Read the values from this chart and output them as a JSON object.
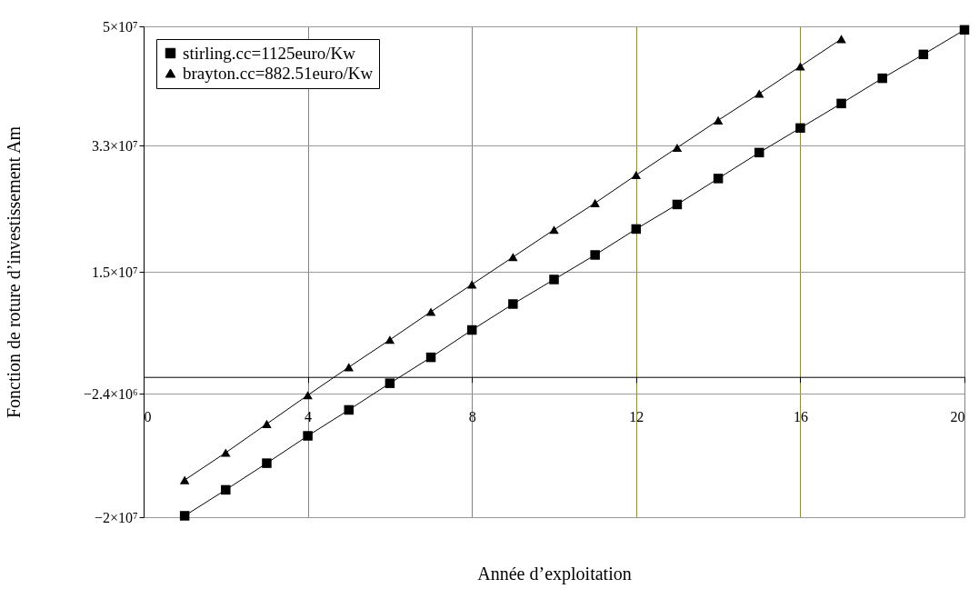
{
  "chart_data": {
    "type": "line",
    "xlabel": "Année d’exploitation",
    "ylabel": "Fonction de roture d’investissement Am",
    "xlim": [
      0,
      20
    ],
    "xticks": [
      0,
      4,
      8,
      12,
      16,
      20
    ],
    "ylim": [
      -20000000,
      50000000
    ],
    "yticks": [
      {
        "value": -20000000,
        "label": "−2×10⁷"
      },
      {
        "value": -2400000,
        "label": "−2.4×10⁶"
      },
      {
        "value": 15000000,
        "label": "1.5×10⁷"
      },
      {
        "value": 33000000,
        "label": "3.3×10⁷"
      },
      {
        "value": 50000000,
        "label": "5×10⁷"
      }
    ],
    "grid": true,
    "legend": "top left",
    "line_style": "solid",
    "series": [
      {
        "name": "stirling.cc=1125euro/Kw",
        "color": "#000000",
        "marker": "square",
        "x": [
          1,
          2,
          3,
          4,
          5,
          6,
          7,
          8,
          9,
          10,
          11,
          12,
          13,
          14,
          15,
          16,
          17,
          18,
          19,
          20
        ],
        "values": [
          -19800000,
          -16100000,
          -12300000,
          -8400000,
          -4700000,
          -900000,
          2800000,
          6700000,
          10400000,
          13900000,
          17400000,
          21100000,
          24600000,
          28300000,
          32000000,
          35500000,
          39000000,
          42600000,
          46000000,
          49500000
        ]
      },
      {
        "name": "brayton.cc=882.51euro/Kw",
        "color": "#000000",
        "marker": "triangle",
        "x": [
          1,
          2,
          3,
          4,
          5,
          6,
          7,
          8,
          9,
          10,
          11,
          12,
          13,
          14,
          15,
          16,
          17
        ],
        "values": [
          -14700000,
          -10800000,
          -6700000,
          -2600000,
          1400000,
          5300000,
          9300000,
          13200000,
          17100000,
          21000000,
          24800000,
          28800000,
          32700000,
          36600000,
          40400000,
          44300000,
          48200000
        ]
      }
    ]
  }
}
